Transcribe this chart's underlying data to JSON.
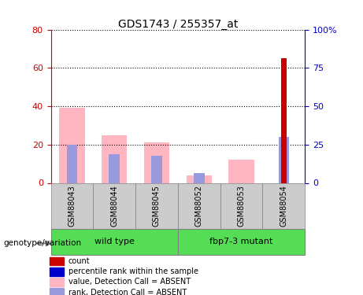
{
  "title": "GDS1743 / 255357_at",
  "samples": [
    "GSM88043",
    "GSM88044",
    "GSM88045",
    "GSM88052",
    "GSM88053",
    "GSM88054"
  ],
  "pink_bar_heights": [
    39,
    25,
    21,
    4,
    12,
    0
  ],
  "blue_bar_heights": [
    20,
    15,
    14,
    5,
    0,
    24
  ],
  "red_bar_heights": [
    0,
    0,
    0,
    0,
    0,
    65
  ],
  "ylim_left": [
    0,
    80
  ],
  "ylim_right": [
    0,
    100
  ],
  "yticks_left": [
    0,
    20,
    40,
    60,
    80
  ],
  "yticks_right": [
    0,
    25,
    50,
    75,
    100
  ],
  "ytick_labels_left": [
    "0",
    "20",
    "40",
    "60",
    "80"
  ],
  "ytick_labels_right": [
    "0",
    "25",
    "50",
    "75",
    "100%"
  ],
  "left_yaxis_color": "#cc0000",
  "right_yaxis_color": "#0000cc",
  "pink_color": "#FFB6C1",
  "blue_color": "#9999DD",
  "red_color": "#CC0000",
  "bg_color": "#FFFFFF",
  "legend_items": [
    {
      "color": "#CC0000",
      "label": "count"
    },
    {
      "color": "#0000CC",
      "label": "percentile rank within the sample"
    },
    {
      "color": "#FFB6C1",
      "label": "value, Detection Call = ABSENT"
    },
    {
      "color": "#9999DD",
      "label": "rank, Detection Call = ABSENT"
    }
  ],
  "genotype_label": "genotype/variation",
  "group_label_1": "wild type",
  "group_label_2": "fbp7-3 mutant",
  "group_bg_color": "#55DD55",
  "sample_bg_color": "#CCCCCC"
}
